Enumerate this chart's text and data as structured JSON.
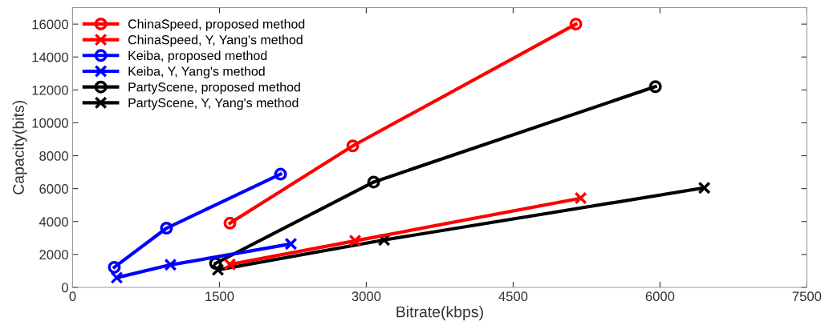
{
  "chart_data": {
    "type": "line",
    "xlabel": "Bitrate(kbps)",
    "ylabel": "Capacity(bits)",
    "xlim": [
      0,
      7500
    ],
    "xticks": [
      0,
      1500,
      3000,
      4500,
      6000,
      7500
    ],
    "ylim": [
      0,
      17000
    ],
    "yticks": [
      0,
      2000,
      4000,
      6000,
      8000,
      10000,
      12000,
      14000,
      16000
    ],
    "grid": false,
    "legend": "top left",
    "line_style": "solid",
    "series": [
      {
        "name": "ChinaSpeed, proposed method",
        "color": "#ff0000",
        "marker": "circle",
        "x": [
          1607,
          2862,
          5141
        ],
        "values": [
          3900,
          8600,
          16000
        ]
      },
      {
        "name": "ChinaSpeed, Y, Yang's method",
        "color": "#ff0000",
        "marker": "cross",
        "x": [
          1607,
          2886,
          5190
        ],
        "values": [
          1400,
          2830,
          5420
        ]
      },
      {
        "name": "Keiba, proposed method",
        "color": "#0000ff",
        "marker": "circle",
        "x": [
          426,
          959,
          2124
        ],
        "values": [
          1220,
          3600,
          6880
        ]
      },
      {
        "name": "Keiba, Y, Yang's method",
        "color": "#0000ff",
        "marker": "cross",
        "x": [
          451,
          1000,
          2230
        ],
        "values": [
          590,
          1370,
          2640
        ]
      },
      {
        "name": "PartyScene, proposed method",
        "color": "#000000",
        "marker": "circle",
        "x": [
          1460,
          3075,
          5953
        ],
        "values": [
          1460,
          6400,
          12200
        ]
      },
      {
        "name": "PartyScene, Y, Yang's method",
        "color": "#000000",
        "marker": "cross",
        "x": [
          1484,
          3182,
          6453
        ],
        "values": [
          1070,
          2880,
          6050
        ]
      }
    ]
  }
}
